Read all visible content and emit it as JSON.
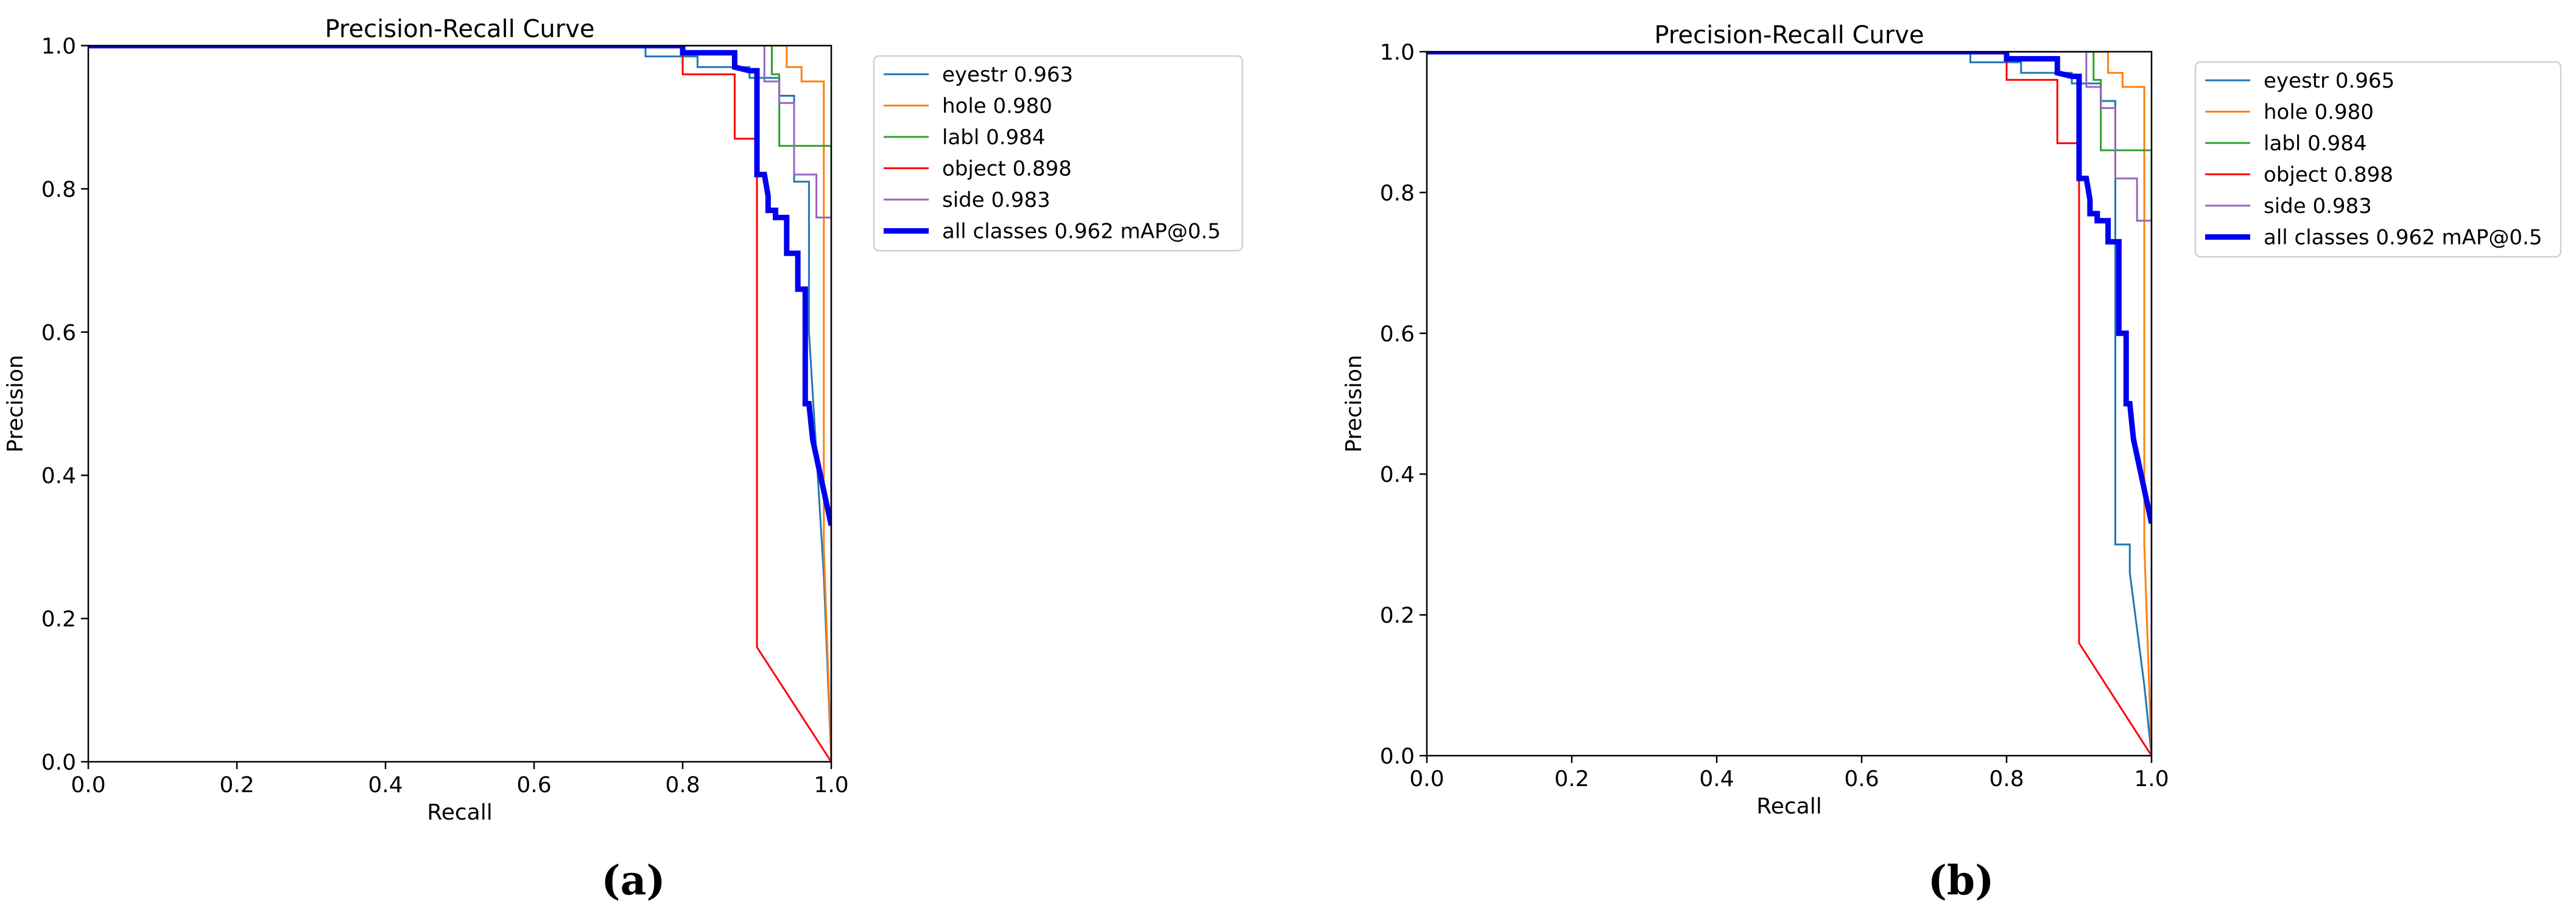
{
  "chart_data": [
    {
      "type": "line",
      "title": "Precision-Recall Curve",
      "xlabel": "Recall",
      "ylabel": "Precision",
      "xlim": [
        0,
        1
      ],
      "ylim": [
        0,
        1
      ],
      "xticks": [
        "0.0",
        "0.2",
        "0.4",
        "0.6",
        "0.8",
        "1.0"
      ],
      "yticks": [
        "0.0",
        "0.2",
        "0.4",
        "0.6",
        "0.8",
        "1.0"
      ],
      "grid": false,
      "legend_position": "outside upper right",
      "caption": "(a)",
      "series": [
        {
          "name": "eyestr 0.963",
          "color": "#1f77b4",
          "width": 1,
          "x": [
            0,
            0.75,
            0.75,
            0.82,
            0.82,
            0.89,
            0.89,
            0.93,
            0.93,
            0.95,
            0.95,
            0.97,
            0.97,
            0.99,
            1.0
          ],
          "y": [
            1,
            1,
            0.985,
            0.985,
            0.97,
            0.97,
            0.955,
            0.955,
            0.93,
            0.93,
            0.81,
            0.81,
            0.6,
            0.26,
            0
          ]
        },
        {
          "name": "hole 0.980",
          "color": "#ff7f0e",
          "width": 1,
          "x": [
            0,
            0.94,
            0.94,
            0.96,
            0.96,
            0.99,
            0.99,
            1.0
          ],
          "y": [
            1,
            1,
            0.97,
            0.97,
            0.95,
            0.95,
            0.3,
            0
          ]
        },
        {
          "name": "labl 0.984",
          "color": "#2ca02c",
          "width": 1,
          "x": [
            0,
            0.92,
            0.92,
            0.93,
            0.93,
            1.0,
            1.0
          ],
          "y": [
            1,
            1,
            0.96,
            0.96,
            0.86,
            0.86,
            0
          ]
        },
        {
          "name": "object 0.898",
          "color": "#ff0000",
          "width": 1,
          "x": [
            0,
            0.8,
            0.8,
            0.87,
            0.87,
            0.9,
            0.9,
            1.0
          ],
          "y": [
            1,
            1,
            0.96,
            0.96,
            0.87,
            0.87,
            0.16,
            0
          ]
        },
        {
          "name": "side 0.983",
          "color": "#9467bd",
          "width": 1,
          "x": [
            0,
            0.91,
            0.91,
            0.93,
            0.93,
            0.95,
            0.95,
            0.98,
            0.98,
            1.0,
            1.0
          ],
          "y": [
            1,
            1,
            0.95,
            0.95,
            0.92,
            0.92,
            0.82,
            0.82,
            0.76,
            0.76,
            0
          ]
        },
        {
          "name": "all classes 0.962 mAP@0.5",
          "color": "#0000ee",
          "width": 3,
          "x": [
            0,
            0.8,
            0.8,
            0.87,
            0.87,
            0.89,
            0.9,
            0.9,
            0.91,
            0.915,
            0.915,
            0.925,
            0.925,
            0.94,
            0.94,
            0.955,
            0.955,
            0.965,
            0.965,
            0.97,
            0.975,
            1.0
          ],
          "y": [
            1,
            1,
            0.99,
            0.99,
            0.97,
            0.965,
            0.965,
            0.82,
            0.82,
            0.79,
            0.77,
            0.77,
            0.76,
            0.76,
            0.71,
            0.71,
            0.66,
            0.66,
            0.5,
            0.5,
            0.45,
            0.33
          ]
        }
      ]
    },
    {
      "type": "line",
      "title": "Precision-Recall Curve",
      "xlabel": "Recall",
      "ylabel": "Precision",
      "xlim": [
        0,
        1
      ],
      "ylim": [
        0,
        1
      ],
      "xticks": [
        "0.0",
        "0.2",
        "0.4",
        "0.6",
        "0.8",
        "1.0"
      ],
      "yticks": [
        "0.0",
        "0.2",
        "0.4",
        "0.6",
        "0.8",
        "1.0"
      ],
      "grid": false,
      "legend_position": "outside upper right",
      "caption": "(b)",
      "series": [
        {
          "name": "eyestr 0.965",
          "color": "#1f77b4",
          "width": 1,
          "x": [
            0,
            0.75,
            0.75,
            0.82,
            0.82,
            0.89,
            0.89,
            0.93,
            0.93,
            0.95,
            0.95,
            0.97,
            0.97,
            0.99,
            1.0
          ],
          "y": [
            1,
            1,
            0.985,
            0.985,
            0.97,
            0.97,
            0.955,
            0.955,
            0.93,
            0.93,
            0.3,
            0.3,
            0.26,
            0.1,
            0
          ]
        },
        {
          "name": "hole 0.980",
          "color": "#ff7f0e",
          "width": 1,
          "x": [
            0,
            0.94,
            0.94,
            0.96,
            0.96,
            0.99,
            0.99,
            1.0
          ],
          "y": [
            1,
            1,
            0.97,
            0.97,
            0.95,
            0.95,
            0.3,
            0
          ]
        },
        {
          "name": "labl 0.984",
          "color": "#2ca02c",
          "width": 1,
          "x": [
            0,
            0.92,
            0.92,
            0.93,
            0.93,
            1.0,
            1.0
          ],
          "y": [
            1,
            1,
            0.96,
            0.96,
            0.86,
            0.86,
            0
          ]
        },
        {
          "name": "object 0.898",
          "color": "#ff0000",
          "width": 1,
          "x": [
            0,
            0.8,
            0.8,
            0.87,
            0.87,
            0.9,
            0.9,
            1.0
          ],
          "y": [
            1,
            1,
            0.96,
            0.96,
            0.87,
            0.87,
            0.16,
            0
          ]
        },
        {
          "name": "side 0.983",
          "color": "#9467bd",
          "width": 1,
          "x": [
            0,
            0.91,
            0.91,
            0.93,
            0.93,
            0.95,
            0.95,
            0.98,
            0.98,
            1.0,
            1.0
          ],
          "y": [
            1,
            1,
            0.95,
            0.95,
            0.92,
            0.92,
            0.82,
            0.82,
            0.76,
            0.76,
            0
          ]
        },
        {
          "name": "all classes 0.962 mAP@0.5",
          "color": "#0000ee",
          "width": 3,
          "x": [
            0,
            0.8,
            0.8,
            0.87,
            0.87,
            0.89,
            0.9,
            0.9,
            0.91,
            0.915,
            0.915,
            0.925,
            0.925,
            0.94,
            0.94,
            0.955,
            0.955,
            0.965,
            0.965,
            0.97,
            0.975,
            1.0
          ],
          "y": [
            1,
            1,
            0.99,
            0.99,
            0.97,
            0.965,
            0.965,
            0.82,
            0.82,
            0.79,
            0.77,
            0.77,
            0.76,
            0.76,
            0.73,
            0.73,
            0.6,
            0.6,
            0.5,
            0.5,
            0.45,
            0.33
          ]
        }
      ]
    }
  ]
}
